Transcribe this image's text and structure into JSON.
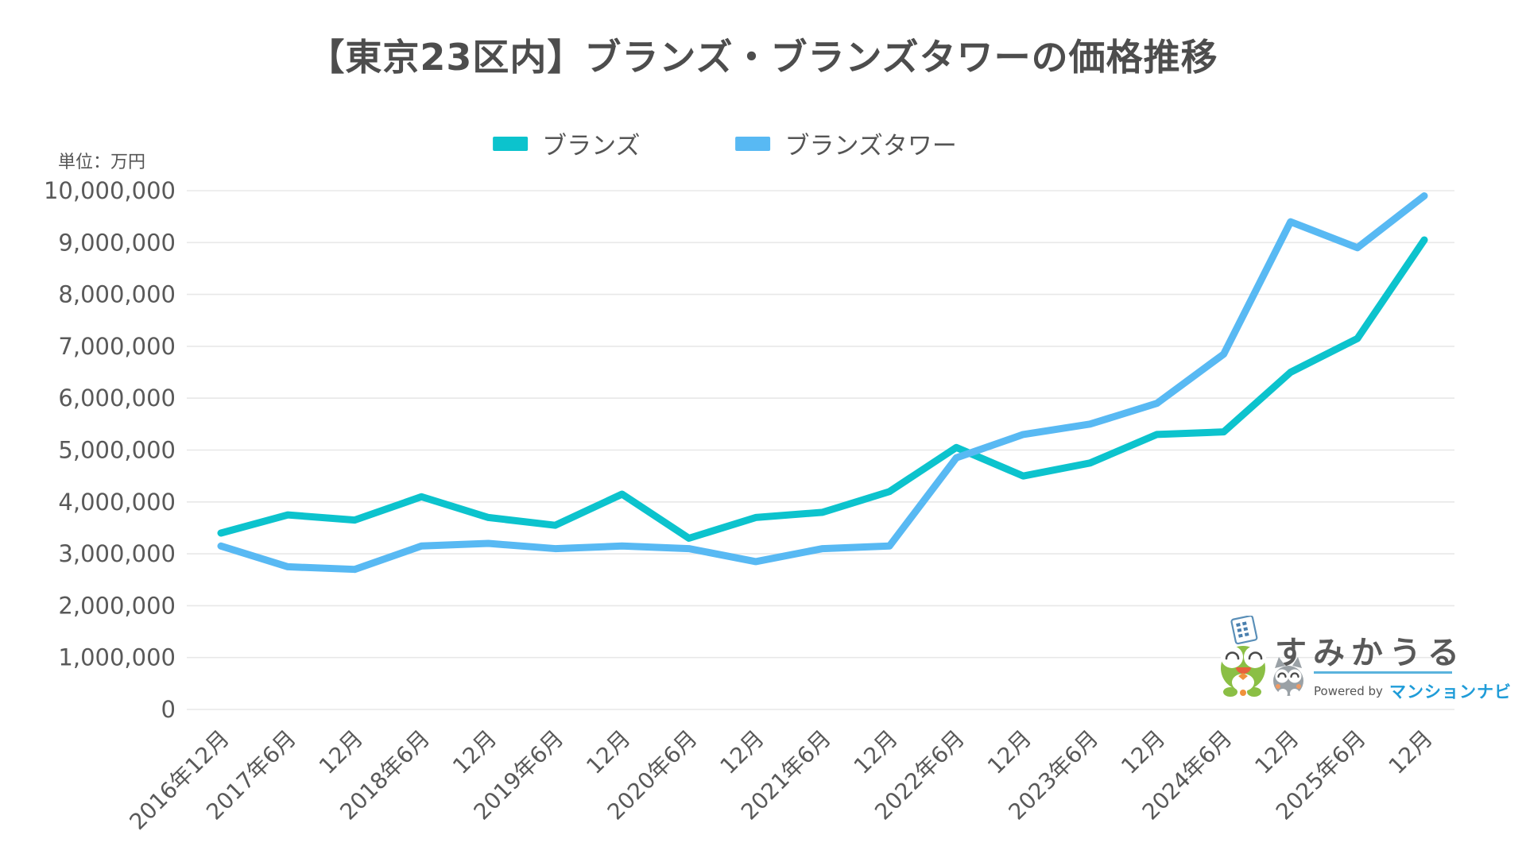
{
  "title": "【東京23区内】ブランズ・ブランズタワーの価格推移",
  "unit_label": "単位：万円",
  "chart_data": {
    "type": "line",
    "title": "【東京23区内】ブランズ・ブランズタワーの価格推移",
    "ylabel": "単位：万円",
    "ylim": [
      0,
      10000000
    ],
    "ytick_step": 1000000,
    "ytick_labels": [
      "0",
      "1,000,000",
      "2,000,000",
      "3,000,000",
      "4,000,000",
      "5,000,000",
      "6,000,000",
      "7,000,000",
      "8,000,000",
      "9,000,000",
      "10,000,000"
    ],
    "grid": true,
    "legend_position": "top",
    "categories": [
      "2016年12月",
      "2017年6月",
      "12月",
      "2018年6月",
      "12月",
      "2019年6月",
      "12月",
      "2020年6月",
      "12月",
      "2021年6月",
      "12月",
      "2022年6月",
      "12月",
      "2023年6月",
      "12月",
      "2024年6月",
      "12月",
      "2025年6月",
      "12月"
    ],
    "series": [
      {
        "name": "ブランズ",
        "color": "#0cc3cd",
        "values": [
          3400000,
          3750000,
          3650000,
          4100000,
          3700000,
          3550000,
          4150000,
          3300000,
          3700000,
          3800000,
          4200000,
          5050000,
          4500000,
          4750000,
          5300000,
          5350000,
          6500000,
          7150000,
          9050000
        ]
      },
      {
        "name": "ブランズタワー",
        "color": "#58b9f3",
        "values": [
          3150000,
          2750000,
          2700000,
          3150000,
          3200000,
          3100000,
          3150000,
          3100000,
          2850000,
          3100000,
          3150000,
          4850000,
          5300000,
          5500000,
          5900000,
          6850000,
          9400000,
          8900000,
          9900000
        ]
      }
    ]
  },
  "logo": {
    "brand": "すみかうる",
    "powered_by": "Powered by",
    "powered_brand": "マンションナビ"
  }
}
